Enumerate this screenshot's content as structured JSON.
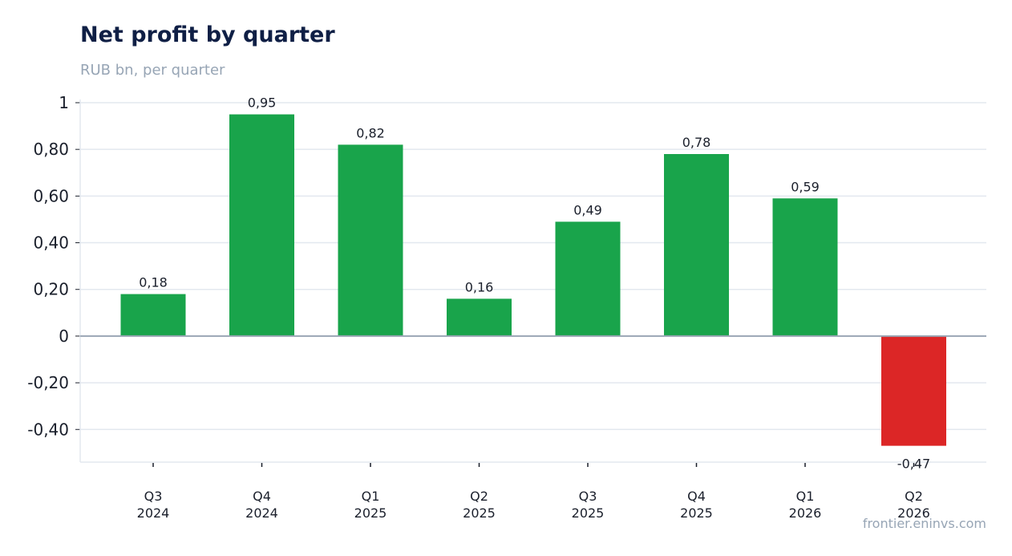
{
  "header": {
    "title": "Net profit by quarter",
    "subtitle": "RUB bn, per quarter"
  },
  "footer": {
    "source": "frontier.eninvs.com"
  },
  "colors": {
    "positive": "#19a44b",
    "negative": "#dc2626",
    "grid": "#e3e8ef",
    "zero_line": "#9aa6b4",
    "text": "#1a1f2b"
  },
  "chart_data": {
    "type": "bar",
    "title": "Net profit by quarter",
    "subtitle": "RUB bn, per quarter",
    "xlabel": "",
    "ylabel": "",
    "categories": [
      [
        "Q3",
        "2024"
      ],
      [
        "Q4",
        "2024"
      ],
      [
        "Q1",
        "2025"
      ],
      [
        "Q2",
        "2025"
      ],
      [
        "Q3",
        "2025"
      ],
      [
        "Q4",
        "2025"
      ],
      [
        "Q1",
        "2026"
      ],
      [
        "Q2",
        "2026"
      ]
    ],
    "values": [
      0.18,
      0.95,
      0.82,
      0.16,
      0.49,
      0.78,
      0.59,
      -0.47
    ],
    "data_labels": [
      "0,18",
      "0,95",
      "0,82",
      "0,16",
      "0,49",
      "0,78",
      "0,59",
      "-0,47"
    ],
    "yticks": [
      {
        "value": 1,
        "label": "1"
      },
      {
        "value": 0.8,
        "label": "0,80"
      },
      {
        "value": 0.6,
        "label": "0,60"
      },
      {
        "value": 0.4,
        "label": "0,40"
      },
      {
        "value": 0.2,
        "label": "0,20"
      },
      {
        "value": 0,
        "label": "0"
      },
      {
        "value": -0.2,
        "label": "-0,20"
      },
      {
        "value": -0.4,
        "label": "-0,40"
      }
    ],
    "ylim": [
      -0.54,
      1.0
    ],
    "grid": true,
    "legend": "none"
  }
}
